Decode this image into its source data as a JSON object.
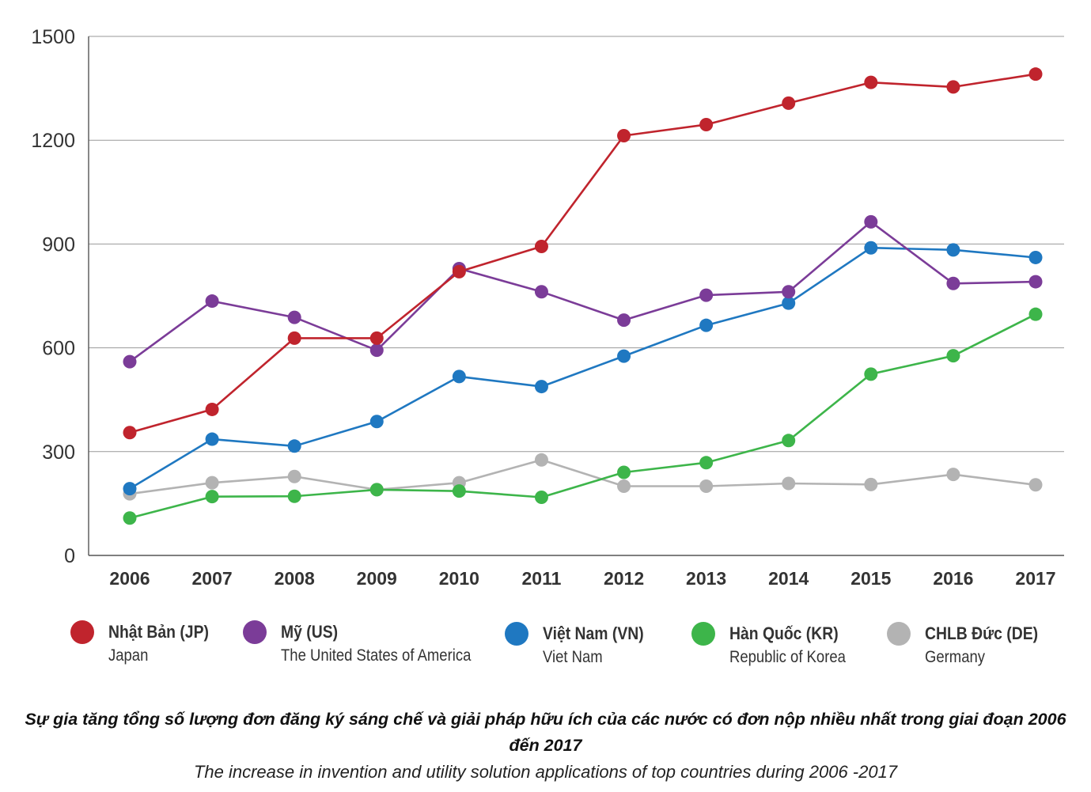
{
  "chart_data": {
    "type": "line",
    "categories": [
      "2006",
      "2007",
      "2008",
      "2009",
      "2010",
      "2011",
      "2012",
      "2013",
      "2014",
      "2015",
      "2016",
      "2017"
    ],
    "ylim": [
      0,
      1500
    ],
    "yticks": [
      "0",
      "300",
      "600",
      "900",
      "1200",
      "1500"
    ],
    "grid": true,
    "legend_position": "bottom",
    "series": [
      {
        "name": "Nhật Bản (JP)",
        "english": "Japan",
        "color": "#c0242d",
        "values": [
          355,
          422,
          628,
          628,
          820,
          893,
          1213,
          1245,
          1307,
          1367,
          1354,
          1391
        ]
      },
      {
        "name": "Mỹ (US)",
        "english": "The United States of America",
        "color": "#7b3c98",
        "values": [
          560,
          735,
          688,
          593,
          829,
          762,
          680,
          752,
          762,
          964,
          786,
          791
        ]
      },
      {
        "name": "Việt Nam (VN)",
        "english": "Viet Nam",
        "color": "#1f78c1",
        "values": [
          193,
          336,
          316,
          387,
          517,
          488,
          576,
          665,
          729,
          889,
          883,
          861
        ]
      },
      {
        "name": "Hàn Quốc (KR)",
        "english": "Republic of Korea",
        "color": "#3db54a",
        "values": [
          108,
          170,
          171,
          190,
          186,
          168,
          240,
          268,
          332,
          524,
          577,
          697
        ]
      },
      {
        "name": "CHLB Đức (DE)",
        "english": "Germany",
        "color": "#b3b3b3",
        "values": [
          178,
          210,
          228,
          190,
          210,
          276,
          200,
          200,
          208,
          205,
          234,
          204
        ]
      }
    ]
  },
  "caption": {
    "vietnamese": "Sự gia tăng tổng số lượng đơn đăng ký sáng chế và giải pháp hữu ích của các nước có đơn nộp nhiều nhất trong giai đoạn 2006 đến 2017",
    "english": "The increase in invention and utility solution applications of top countries during 2006 -2017"
  }
}
